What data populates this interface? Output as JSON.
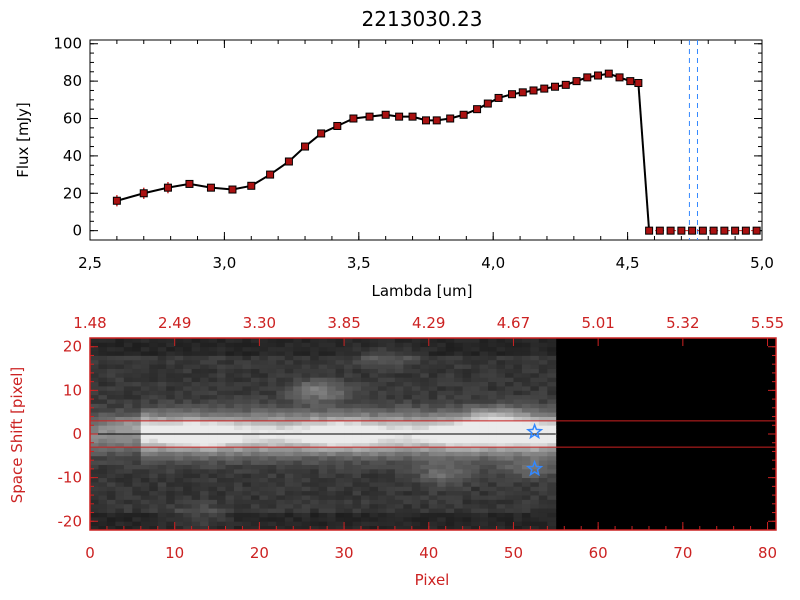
{
  "colors": {
    "background": "#ffffff",
    "axis_top": "#000000",
    "axis_bottom": "#cc2222",
    "marker_fill": "#aa1111",
    "error_bar": "#cc2222",
    "line": "#000000",
    "dashed_marker": "#3388ff",
    "star": "#3388ff",
    "image_background": "#000000"
  },
  "chart_data": [
    {
      "type": "line",
      "title": "2213030.23",
      "xlabel": "Lambda [um]",
      "ylabel": "Flux [mJy]",
      "xlim": [
        2.5,
        5.0
      ],
      "ylim": [
        -5,
        102
      ],
      "x_tick_labels": [
        "2.5",
        "3.0",
        "3.5",
        "4.0",
        "4.5",
        "5.0"
      ],
      "y_tick_labels": [
        "0",
        "20",
        "40",
        "60",
        "80",
        "100"
      ],
      "grid": false,
      "vertical_markers": [
        4.73,
        4.76
      ],
      "series": [
        {
          "x": [
            2.6,
            2.7,
            2.79,
            2.87,
            2.95,
            3.03,
            3.1,
            3.17,
            3.24,
            3.3,
            3.36,
            3.42,
            3.48,
            3.54,
            3.6,
            3.65,
            3.7,
            3.75,
            3.79,
            3.84,
            3.89,
            3.94,
            3.98,
            4.02,
            4.07,
            4.11,
            4.15,
            4.19,
            4.23,
            4.27,
            4.31,
            4.35,
            4.39,
            4.43,
            4.47,
            4.51,
            4.54
          ],
          "y": [
            16,
            20,
            23,
            25,
            23,
            22,
            24,
            30,
            37,
            45,
            52,
            56,
            60,
            61,
            62,
            61,
            61,
            59,
            59,
            60,
            62,
            65,
            68,
            71,
            73,
            74,
            75,
            76,
            77,
            78,
            80,
            82,
            83,
            84,
            82,
            80,
            79
          ],
          "errors": [
            3,
            3,
            3,
            2,
            2,
            2,
            2,
            2,
            2,
            2,
            2,
            2,
            2,
            2,
            2,
            1,
            1,
            1,
            1,
            1,
            1,
            1,
            1,
            1,
            1,
            1,
            1,
            1,
            1,
            1,
            1,
            1,
            1,
            1,
            1,
            1,
            1
          ]
        },
        {
          "x": [
            4.54,
            4.58
          ],
          "y": [
            79,
            0
          ]
        },
        {
          "x": [
            4.58,
            4.62,
            4.66,
            4.7,
            4.74,
            4.78,
            4.82,
            4.86,
            4.9,
            4.94,
            4.98
          ],
          "y": [
            0,
            0,
            0,
            0,
            0,
            0,
            0,
            0,
            0,
            0,
            0
          ]
        }
      ]
    },
    {
      "type": "heatmap",
      "xlabel": "Pixel",
      "ylabel": "Space Shift [pixel]",
      "xlim": [
        0,
        81
      ],
      "ylim": [
        -22,
        22
      ],
      "x_tick_labels": [
        "0",
        "10",
        "20",
        "30",
        "40",
        "50",
        "60",
        "70",
        "80"
      ],
      "y_tick_labels": [
        "-20",
        "-10",
        "0",
        "10",
        "20"
      ],
      "top_axis_tick_labels": [
        "1.48",
        "2.49",
        "3.30",
        "3.85",
        "4.29",
        "4.67",
        "5.01",
        "5.32",
        "5.55"
      ],
      "signal_extent_pixels": [
        0,
        55
      ],
      "horizontal_lines": [
        3,
        -3
      ],
      "center_line": 0,
      "stars": [
        {
          "x": 52.5,
          "y": 0.5
        },
        {
          "x": 52.5,
          "y": -8
        }
      ],
      "blobs": [
        {
          "x": 13,
          "y": 0,
          "intensity": 0.95
        },
        {
          "x": 30,
          "y": 0,
          "intensity": 0.9
        },
        {
          "x": 45,
          "y": 0,
          "intensity": 0.85
        },
        {
          "x": 52,
          "y": 0,
          "intensity": 0.8
        },
        {
          "x": 27,
          "y": 10,
          "intensity": 0.6
        },
        {
          "x": 35,
          "y": 18,
          "intensity": 0.35
        },
        {
          "x": 42,
          "y": -9,
          "intensity": 0.45
        },
        {
          "x": 52,
          "y": -8,
          "intensity": 0.4
        },
        {
          "x": 13,
          "y": -19,
          "intensity": 0.35
        },
        {
          "x": 5,
          "y": 2,
          "intensity": 0.3
        },
        {
          "x": 48,
          "y": 4,
          "intensity": 0.55
        }
      ]
    }
  ]
}
